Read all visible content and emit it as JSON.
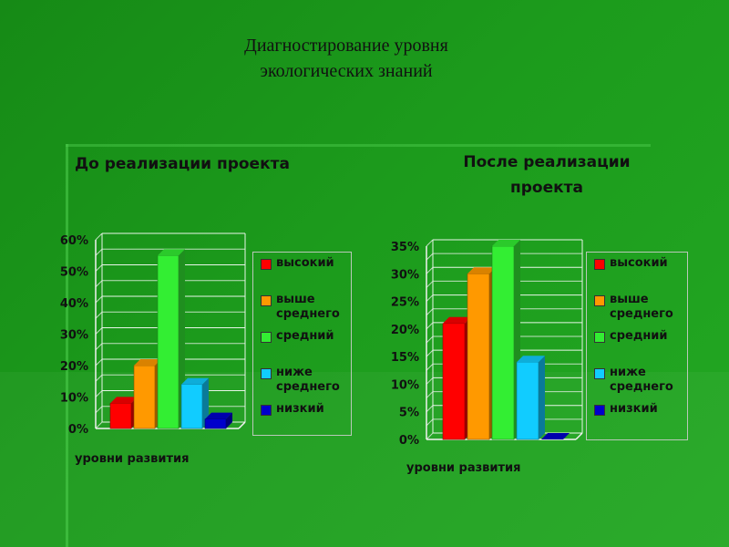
{
  "title_line1": "Диагностирование уровня",
  "title_line2": "экологических знаний",
  "chart_data": [
    {
      "type": "bar",
      "title": "До реализации проекта",
      "xlabel": "уровни развития",
      "ylabel": "",
      "ylim": [
        0,
        60
      ],
      "yticks": [
        "0%",
        "10%",
        "20%",
        "30%",
        "40%",
        "50%",
        "60%"
      ],
      "grid": true,
      "legend_position": "right",
      "series": [
        {
          "name": "высокий",
          "value": 8,
          "color": "#ff0000"
        },
        {
          "name": "выше среднего",
          "value": 20,
          "color": "#ff9900"
        },
        {
          "name": "средний",
          "value": 55,
          "color": "#33ee33"
        },
        {
          "name": "ниже среднего",
          "value": 14,
          "color": "#11ccff"
        },
        {
          "name": "низкий",
          "value": 3,
          "color": "#0000cc"
        }
      ]
    },
    {
      "type": "bar",
      "title": "После реализации проекта",
      "xlabel": "уровни развития",
      "ylabel": "",
      "ylim": [
        0,
        35
      ],
      "yticks": [
        "0%",
        "5%",
        "10%",
        "15%",
        "20%",
        "25%",
        "30%",
        "35%"
      ],
      "grid": true,
      "legend_position": "right",
      "series": [
        {
          "name": "высокий",
          "value": 21,
          "color": "#ff0000"
        },
        {
          "name": "выше среднего",
          "value": 30,
          "color": "#ff9900"
        },
        {
          "name": "средний",
          "value": 35,
          "color": "#33ee33"
        },
        {
          "name": "ниже среднего",
          "value": 14,
          "color": "#11ccff"
        },
        {
          "name": "низкий",
          "value": 0,
          "color": "#0000cc"
        }
      ]
    }
  ],
  "legend_labels": [
    "высокий",
    "выше\nсреднего",
    "средний",
    "ниже\nсреднего",
    "низкий"
  ]
}
